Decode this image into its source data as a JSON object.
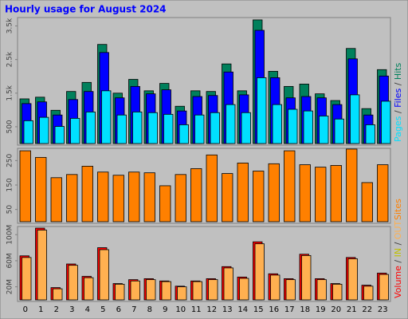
{
  "chart_data": [
    {
      "type": "bar",
      "title": "Hourly usage for August 2024",
      "categories": [
        "0",
        "1",
        "2",
        "3",
        "4",
        "5",
        "6",
        "7",
        "8",
        "9",
        "10",
        "11",
        "12",
        "13",
        "14",
        "15",
        "16",
        "17",
        "18",
        "19",
        "20",
        "21",
        "22",
        "23"
      ],
      "ylim": [
        0,
        3750
      ],
      "yticks": [
        {
          "value": 3500,
          "label": "3.5k"
        },
        {
          "value": 2500,
          "label": "2.5k"
        },
        {
          "value": 1500,
          "label": "1.5k"
        },
        500
      ],
      "series": [
        {
          "name": "Hits",
          "color": "#00805c",
          "values": [
            1330,
            1380,
            990,
            1550,
            1820,
            2950,
            1500,
            1910,
            1570,
            1790,
            1110,
            1570,
            1550,
            2370,
            1570,
            3680,
            2150,
            1700,
            1770,
            1480,
            1280,
            2830,
            1040,
            2200
          ]
        },
        {
          "name": "Files",
          "color": "#0000ff",
          "values": [
            1190,
            1240,
            850,
            1310,
            1550,
            2710,
            1360,
            1700,
            1480,
            1600,
            970,
            1400,
            1430,
            2130,
            1450,
            3370,
            1960,
            1360,
            1400,
            1360,
            1160,
            2520,
            850,
            2010
          ]
        },
        {
          "name": "Pages",
          "color": "#00e0ff",
          "values": [
            680,
            780,
            510,
            750,
            940,
            1570,
            850,
            940,
            920,
            870,
            560,
            850,
            920,
            1160,
            920,
            1960,
            1160,
            1020,
            970,
            820,
            730,
            1450,
            560,
            1260
          ]
        }
      ]
    },
    {
      "type": "bar",
      "ylim": [
        0,
        300
      ],
      "yticks": [
        250,
        150,
        50
      ],
      "series": [
        {
          "name": "Sites",
          "color": "#ff8000",
          "values": [
            290,
            263,
            180,
            193,
            227,
            203,
            190,
            203,
            200,
            147,
            193,
            217,
            273,
            197,
            240,
            207,
            237,
            290,
            233,
            223,
            230,
            297,
            160,
            233
          ]
        }
      ]
    },
    {
      "type": "bar",
      "ylim": [
        0,
        112.5
      ],
      "yticks": [
        {
          "value": 100,
          "label": "100M"
        },
        {
          "value": 60,
          "label": "60M"
        },
        {
          "value": 20,
          "label": "20M"
        }
      ],
      "legend_only": {
        "name": "IN",
        "color": "#c0c000"
      },
      "series": [
        {
          "name": "Volume",
          "color": "#ff0000",
          "values": [
            67.5,
            110,
            18.8,
            55,
            36,
            80,
            25,
            31,
            32.5,
            29,
            21,
            29,
            32.5,
            51,
            35,
            89,
            40,
            32.5,
            70,
            32.5,
            25,
            65,
            22.5,
            41
          ]
        },
        {
          "name": "OUT",
          "color": "#ffb050",
          "values": [
            65,
            107,
            17,
            53,
            34,
            77,
            24,
            29,
            31,
            28,
            20,
            28,
            31,
            49,
            33,
            86,
            38,
            31,
            68,
            31,
            24,
            63,
            21,
            39
          ]
        }
      ]
    }
  ]
}
